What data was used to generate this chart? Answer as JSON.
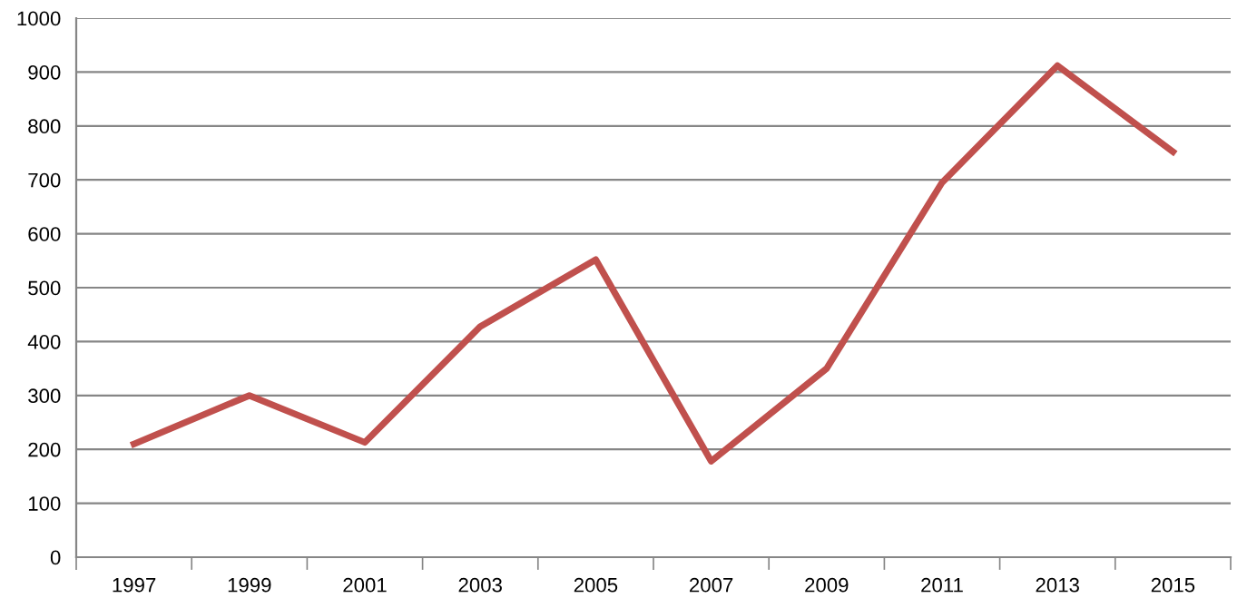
{
  "chart_data": {
    "type": "line",
    "categories": [
      "1997",
      "1999",
      "2001",
      "2003",
      "2005",
      "2007",
      "2009",
      "2011",
      "2013",
      "2015"
    ],
    "series": [
      {
        "color": "#c0504d",
        "values": [
          210,
          300,
          213,
          428,
          552,
          178,
          350,
          695,
          912,
          752
        ]
      }
    ],
    "ylim": [
      0,
      1000
    ],
    "yticks": [
      0,
      100,
      200,
      300,
      400,
      500,
      600,
      700,
      800,
      900,
      1000
    ],
    "grid": "y",
    "legend": false,
    "marker": "none",
    "line_style": "solid"
  }
}
